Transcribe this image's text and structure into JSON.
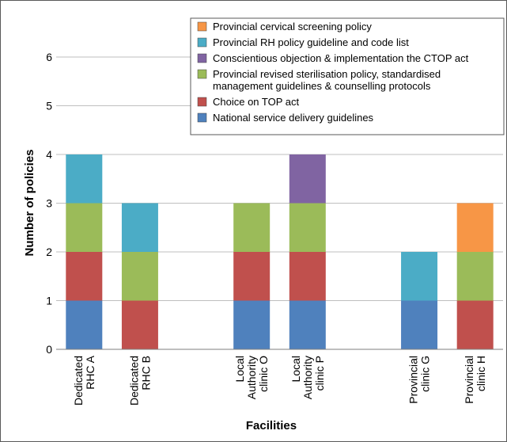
{
  "chart_data": {
    "type": "bar",
    "stacked": true,
    "title": "",
    "xlabel": "Facilities",
    "ylabel": "Number of policies",
    "ylim": [
      0,
      6
    ],
    "yticks": [
      "0",
      "1",
      "2",
      "3",
      "4",
      "5",
      "6"
    ],
    "grid": true,
    "legend_position": "top-right",
    "categories": [
      [
        "Dedicated",
        "RHC A"
      ],
      [
        "Dedicated",
        "RHC B"
      ],
      [],
      [
        "Local",
        "Authority",
        "clinic O"
      ],
      [
        "Local",
        "Authority",
        "clinic P"
      ],
      [],
      [
        "Provincial",
        "clinic G"
      ],
      [
        "Provincial",
        "clinic H"
      ]
    ],
    "series": [
      {
        "name": [
          "National service delivery guidelines"
        ],
        "color": "#4f81bd",
        "values": [
          1,
          0,
          0,
          1,
          1,
          0,
          1,
          0
        ]
      },
      {
        "name": [
          "Choice on TOP act"
        ],
        "color": "#c0504d",
        "values": [
          1,
          1,
          0,
          1,
          1,
          0,
          0,
          1
        ]
      },
      {
        "name": [
          "Provincial revised sterilisation policy, standardised",
          "management guidelines & counselling protocols"
        ],
        "color": "#9bbb59",
        "values": [
          1,
          1,
          0,
          1,
          1,
          0,
          0,
          1
        ]
      },
      {
        "name": [
          "Conscientious objection & implementation the CTOP act"
        ],
        "color": "#8064a2",
        "values": [
          0,
          0,
          0,
          0,
          1,
          0,
          0,
          0
        ]
      },
      {
        "name": [
          "Provincial RH policy guideline and code list"
        ],
        "color": "#4bacc6",
        "values": [
          1,
          1,
          0,
          0,
          0,
          0,
          1,
          0
        ]
      },
      {
        "name": [
          "Provincial cervical screening policy"
        ],
        "color": "#f79646",
        "values": [
          0,
          0,
          0,
          0,
          0,
          0,
          0,
          1
        ]
      }
    ]
  }
}
